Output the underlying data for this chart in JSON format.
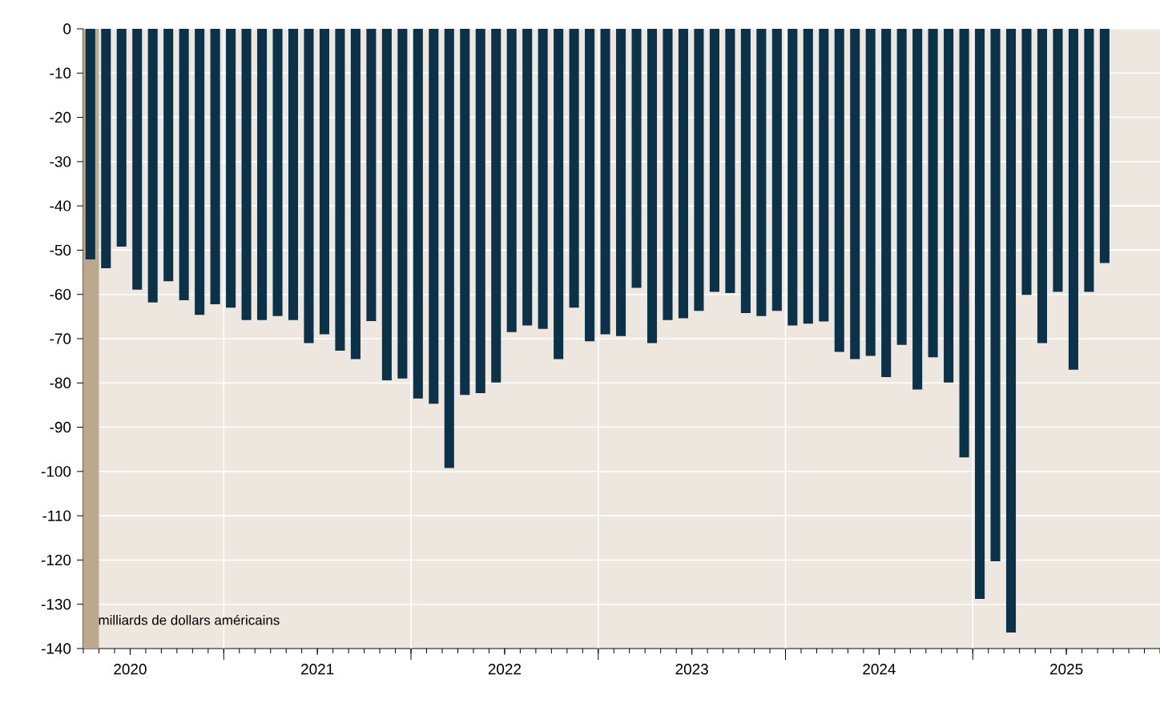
{
  "chart_data": {
    "type": "bar",
    "x": [
      "2020-04-15",
      "2020-05-15",
      "2020-06-15",
      "2020-07-15",
      "2020-08-15",
      "2020-09-15",
      "2020-10-15",
      "2020-11-15",
      "2020-12-15",
      "2021-01-15",
      "2021-02-15",
      "2021-03-15",
      "2021-04-15",
      "2021-05-15",
      "2021-06-15",
      "2021-07-15",
      "2021-08-15",
      "2021-09-15",
      "2021-10-15",
      "2021-11-15",
      "2021-12-15",
      "2022-01-15",
      "2022-02-15",
      "2022-03-15",
      "2022-04-15",
      "2022-05-15",
      "2022-06-15",
      "2022-07-15",
      "2022-08-15",
      "2022-09-15",
      "2022-10-15",
      "2022-11-15",
      "2022-12-15",
      "2023-01-15",
      "2023-02-15",
      "2023-03-15",
      "2023-04-15",
      "2023-05-15",
      "2023-06-15",
      "2023-07-15",
      "2023-08-15",
      "2023-09-15",
      "2023-10-15",
      "2023-11-15",
      "2023-12-15",
      "2024-01-15",
      "2024-02-15",
      "2024-03-15",
      "2024-04-15",
      "2024-05-15",
      "2024-06-15",
      "2024-07-15",
      "2024-08-15",
      "2024-09-15",
      "2024-10-15",
      "2024-11-15",
      "2024-12-15",
      "2025-01-15",
      "2025-02-15",
      "2025-03-15",
      "2025-04-15",
      "2025-05-15",
      "2025-06-15",
      "2025-07-15",
      "2025-08-15",
      "2025-09-15"
    ],
    "values": [
      -52.1,
      -54.1,
      -49.2,
      -58.9,
      -61.8,
      -57.0,
      -61.3,
      -64.6,
      -62.2,
      -63.0,
      -65.8,
      -65.8,
      -64.9,
      -65.8,
      -71.0,
      -69.0,
      -72.7,
      -74.6,
      -66.0,
      -79.4,
      -79.0,
      -83.5,
      -84.7,
      -99.2,
      -82.7,
      -82.3,
      -79.9,
      -68.5,
      -67.0,
      -67.8,
      -74.6,
      -63.0,
      -70.6,
      -69.0,
      -69.4,
      -58.5,
      -71.0,
      -65.8,
      -65.4,
      -63.7,
      -59.4,
      -59.7,
      -64.2,
      -64.9,
      -63.7,
      -67.0,
      -66.6,
      -66.1,
      -73.0,
      -74.6,
      -73.9,
      -78.7,
      -71.4,
      -81.5,
      -74.2,
      -79.9,
      -96.8,
      -128.8,
      -120.3,
      -136.4,
      -60.1,
      -71.0,
      -59.4,
      -77.0,
      -59.4,
      -52.9
    ],
    "color": "#0b3249",
    "xlim": [
      "2020-04-01",
      "2026-01-01"
    ],
    "xticks": [
      {
        "value": "2020-07-01",
        "label": "2020"
      },
      {
        "value": "2021-07-01",
        "label": "2021"
      },
      {
        "value": "2022-07-01",
        "label": "2022"
      },
      {
        "value": "2023-07-01",
        "label": "2023"
      },
      {
        "value": "2024-07-01",
        "label": "2024"
      },
      {
        "value": "2025-07-01",
        "label": "2025"
      },
      {
        "value": "2021-01-01",
        "label": null
      },
      {
        "value": "2022-01-01",
        "label": null
      },
      {
        "value": "2023-01-01",
        "label": null
      },
      {
        "value": "2024-01-01",
        "label": null
      },
      {
        "value": "2025-01-01",
        "label": null
      }
    ],
    "ylim": [
      -140,
      0
    ],
    "yticks": [
      0,
      -10,
      -20,
      -30,
      -40,
      -50,
      -60,
      -70,
      -80,
      -90,
      -100,
      -110,
      -120,
      -130,
      -140
    ],
    "grid": true,
    "bands": [
      {
        "axis": "x",
        "from": "2020-04-01",
        "to": "2020-05-01",
        "color": "#bca88e"
      }
    ],
    "annotations": [
      "milliards de dollars américains"
    ]
  }
}
